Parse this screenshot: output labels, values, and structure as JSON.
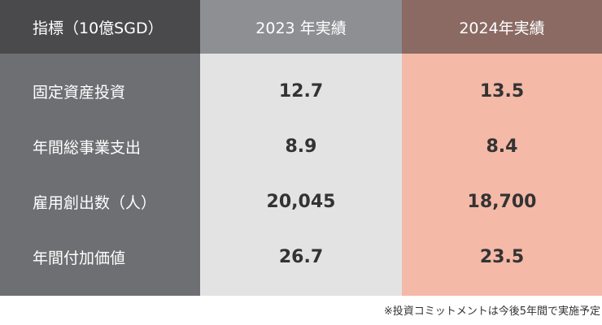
{
  "table": {
    "headers": [
      "指標（10億SGD）",
      "2023 年実績",
      "2024年実績"
    ],
    "rows": [
      {
        "label": "固定資産投資",
        "y2023": "12.7",
        "y2024": "13.5"
      },
      {
        "label": "年間総事業支出",
        "y2023": "8.9",
        "y2024": "8.4"
      },
      {
        "label": "雇用創出数（人）",
        "y2023": "20,045",
        "y2024": "18,700"
      },
      {
        "label": "年間付加価値",
        "y2023": "26.7",
        "y2024": "23.5"
      }
    ]
  },
  "footnote": "※投資コミットメントは今後5年間で実施予定",
  "colors": {
    "header_label_bg": "#4a4a4c",
    "header_2023_bg": "#8d8f92",
    "header_2024_bg": "#8a6a63",
    "label_col_bg": "#6e6f72",
    "col_2023_bg": "#e3e3e4",
    "col_2024_bg": "#f4b9a7"
  }
}
